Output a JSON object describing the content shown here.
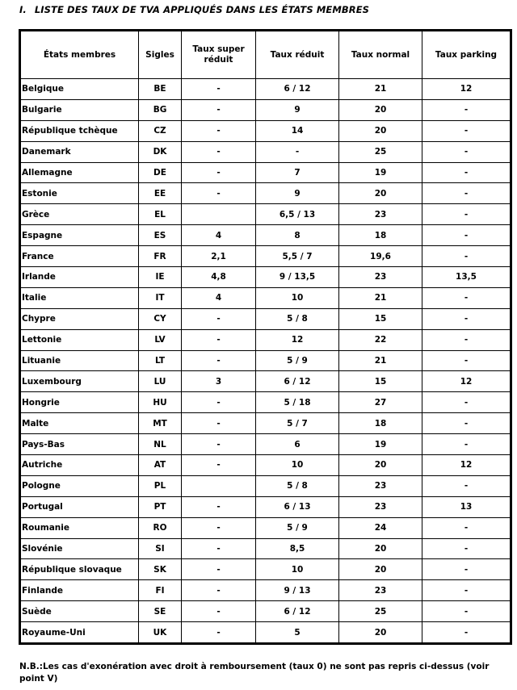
{
  "title": {
    "number": "I.",
    "text": "LISTE DES TAUX DE TVA APPLIQUÉS DANS LES ÉTATS MEMBRES"
  },
  "table": {
    "headers": [
      "États membres",
      "Sigles",
      "Taux super réduit",
      "Taux réduit",
      "Taux normal",
      "Taux parking"
    ],
    "rows": [
      [
        "Belgique",
        "BE",
        "-",
        "6 / 12",
        "21",
        "12"
      ],
      [
        "Bulgarie",
        "BG",
        "-",
        "9",
        "20",
        "-"
      ],
      [
        "République tchèque",
        "CZ",
        "-",
        "14",
        "20",
        "-"
      ],
      [
        "Danemark",
        "DK",
        "-",
        "-",
        "25",
        "-"
      ],
      [
        "Allemagne",
        "DE",
        "-",
        "7",
        "19",
        "-"
      ],
      [
        "Estonie",
        "EE",
        "-",
        "9",
        "20",
        "-"
      ],
      [
        "Grèce",
        "EL",
        "",
        "6,5 / 13",
        "23",
        "-"
      ],
      [
        "Espagne",
        "ES",
        "4",
        "8",
        "18",
        "-"
      ],
      [
        "France",
        "FR",
        "2,1",
        "5,5 / 7",
        "19,6",
        "-"
      ],
      [
        "Irlande",
        "IE",
        "4,8",
        "9 / 13,5",
        "23",
        "13,5"
      ],
      [
        "Italie",
        "IT",
        "4",
        "10",
        "21",
        "-"
      ],
      [
        "Chypre",
        "CY",
        "-",
        "5 / 8",
        "15",
        "-"
      ],
      [
        "Lettonie",
        "LV",
        "-",
        "12",
        "22",
        "-"
      ],
      [
        "Lituanie",
        "LT",
        "-",
        "5 / 9",
        "21",
        "-"
      ],
      [
        "Luxembourg",
        "LU",
        "3",
        "6 / 12",
        "15",
        "12"
      ],
      [
        "Hongrie",
        "HU",
        "-",
        "5 / 18",
        "27",
        "-"
      ],
      [
        "Malte",
        "MT",
        "-",
        "5 / 7",
        "18",
        "-"
      ],
      [
        "Pays-Bas",
        "NL",
        "-",
        "6",
        "19",
        "-"
      ],
      [
        "Autriche",
        "AT",
        "-",
        "10",
        "20",
        "12"
      ],
      [
        "Pologne",
        "PL",
        "",
        "5 / 8",
        "23",
        "-"
      ],
      [
        "Portugal",
        "PT",
        "-",
        "6 / 13",
        "23",
        "13"
      ],
      [
        "Roumanie",
        "RO",
        "-",
        "5 / 9",
        "24",
        "-"
      ],
      [
        "Slovénie",
        "SI",
        "-",
        "8,5",
        "20",
        "-"
      ],
      [
        "République slovaque",
        "SK",
        "-",
        "10",
        "20",
        "-"
      ],
      [
        "Finlande",
        "FI",
        "-",
        "9 / 13",
        "23",
        "-"
      ],
      [
        "Suède",
        "SE",
        "-",
        "6 / 12",
        "25",
        "-"
      ],
      [
        "Royaume-Uni",
        "UK",
        "-",
        "5",
        "20",
        "-"
      ]
    ]
  },
  "note": "N.B.:Les cas d'exonération avec droit à remboursement (taux 0) ne sont pas repris ci-dessus (voir point V)"
}
